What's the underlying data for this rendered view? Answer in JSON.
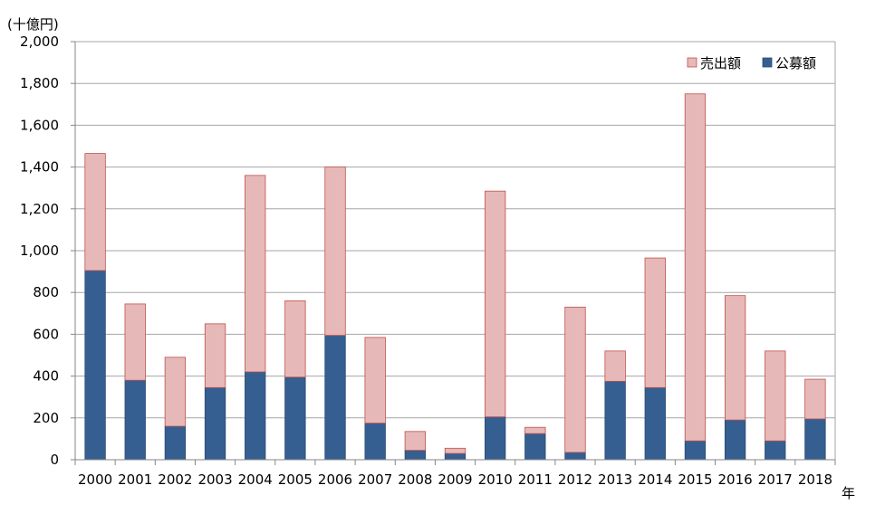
{
  "chart_data": {
    "type": "bar",
    "stacked": true,
    "unit_label": "(十億円)",
    "x_unit_label": "年",
    "categories": [
      "2000",
      "2001",
      "2002",
      "2003",
      "2004",
      "2005",
      "2006",
      "2007",
      "2008",
      "2009",
      "2010",
      "2011",
      "2012",
      "2013",
      "2014",
      "2015",
      "2016",
      "2017",
      "2018"
    ],
    "series": [
      {
        "name": "公募額",
        "color": "#365f91",
        "values": [
          905,
          380,
          160,
          345,
          420,
          395,
          595,
          175,
          45,
          30,
          205,
          125,
          35,
          375,
          345,
          90,
          190,
          90,
          195
        ]
      },
      {
        "name": "売出額",
        "color": "#e6b9b8",
        "values": [
          560,
          365,
          330,
          305,
          940,
          365,
          805,
          410,
          90,
          25,
          1080,
          30,
          695,
          145,
          620,
          1660,
          595,
          430,
          190
        ]
      }
    ],
    "legend_order": [
      "売出額",
      "公募額"
    ],
    "legend_position": "top-right",
    "ylim": [
      0,
      2000
    ],
    "yticks": [
      0,
      200,
      400,
      600,
      800,
      1000,
      1200,
      1400,
      1600,
      1800,
      2000
    ],
    "ytick_labels": [
      "0",
      "200",
      "400",
      "600",
      "800",
      "1,000",
      "1,200",
      "1,400",
      "1,600",
      "1,800",
      "2,000"
    ],
    "grid": true
  }
}
